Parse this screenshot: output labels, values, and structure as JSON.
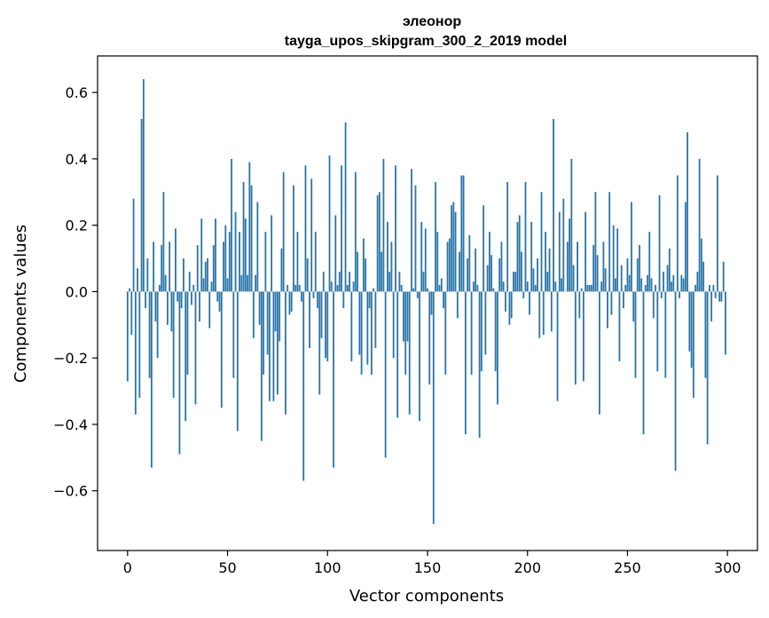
{
  "chart_data": {
    "type": "bar",
    "title": "элеонор",
    "subtitle": "tayga_upos_skipgram_300_2_2019 model",
    "xlabel": "Vector components",
    "ylabel": "Components values",
    "xlim": [
      -15,
      315
    ],
    "ylim": [
      -0.78,
      0.71
    ],
    "xticks": [
      0,
      50,
      100,
      150,
      200,
      250,
      300
    ],
    "yticks": [
      -0.6,
      -0.4,
      -0.2,
      0.0,
      0.2,
      0.4,
      0.6
    ],
    "xtick_labels": [
      "0",
      "50",
      "100",
      "150",
      "200",
      "250",
      "300"
    ],
    "ytick_labels": [
      "−0.6",
      "−0.4",
      "−0.2",
      "0.0",
      "0.2",
      "0.4",
      "0.6"
    ],
    "grid": false,
    "color": "#1f77b4",
    "x_start": 0,
    "values": [
      -0.27,
      0.01,
      -0.13,
      0.28,
      -0.37,
      0.07,
      -0.32,
      0.52,
      0.64,
      -0.05,
      0.1,
      -0.26,
      -0.53,
      0.15,
      -0.09,
      -0.2,
      0.02,
      0.14,
      0.3,
      0.05,
      -0.1,
      0.15,
      -0.12,
      -0.32,
      0.19,
      -0.03,
      -0.49,
      -0.05,
      0.1,
      -0.39,
      -0.25,
      0.06,
      -0.04,
      0.02,
      -0.34,
      0.14,
      -0.09,
      0.22,
      0.04,
      0.09,
      0.1,
      -0.11,
      0.03,
      0.14,
      0.22,
      -0.03,
      -0.06,
      -0.35,
      0.15,
      0.2,
      0.04,
      0.18,
      0.4,
      -0.26,
      0.24,
      -0.42,
      0.18,
      0.05,
      0.33,
      0.22,
      0.05,
      0.39,
      0.32,
      -0.14,
      0.05,
      0.27,
      -0.1,
      -0.45,
      -0.25,
      0.18,
      -0.19,
      -0.33,
      0.23,
      -0.33,
      -0.12,
      -0.31,
      -0.15,
      0.13,
      0.36,
      -0.37,
      0.02,
      -0.07,
      -0.06,
      0.32,
      0.02,
      0.18,
      0.02,
      -0.03,
      -0.57,
      0.38,
      0.1,
      -0.17,
      0.34,
      -0.02,
      0.18,
      -0.05,
      -0.31,
      -0.14,
      0.06,
      -0.2,
      -0.21,
      0.41,
      0.03,
      -0.53,
      0.23,
      0.02,
      0.06,
      0.38,
      -0.05,
      0.51,
      0.02,
      0.06,
      -0.21,
      0.03,
      0.36,
      0.12,
      -0.19,
      -0.25,
      0.16,
      0.1,
      -0.22,
      -0.05,
      -0.25,
      0.01,
      -0.17,
      0.29,
      0.3,
      0.12,
      0.4,
      -0.5,
      0.21,
      0.06,
      0.15,
      -0.2,
      0.38,
      -0.38,
      0.06,
      0.02,
      -0.15,
      -0.25,
      -0.15,
      -0.37,
      0.37,
      0.01,
      0.32,
      -0.02,
      -0.39,
      0.21,
      0.06,
      0.19,
      0.01,
      -0.28,
      -0.07,
      -0.7,
      0.33,
      0.18,
      0.02,
      0.04,
      -0.05,
      -0.25,
      0.15,
      0.16,
      0.26,
      0.27,
      0.24,
      -0.08,
      0.12,
      0.35,
      0.35,
      -0.43,
      0.1,
      0.17,
      -0.25,
      0.03,
      0.13,
      0.02,
      -0.44,
      -0.24,
      0.26,
      -0.19,
      0.08,
      0.18,
      0.11,
      0.01,
      -0.24,
      -0.34,
      0.1,
      0.15,
      0.03,
      -0.06,
      0.33,
      -0.1,
      -0.08,
      0.06,
      0.06,
      0.21,
      0.23,
      0.12,
      -0.02,
      0.33,
      0.03,
      -0.07,
      0.21,
      0.07,
      0.02,
      0.1,
      -0.14,
      0.3,
      -0.13,
      0.18,
      0.06,
      0.13,
      -0.12,
      0.52,
      0.03,
      -0.33,
      0.24,
      0.04,
      0.28,
      0.0,
      0.15,
      0.22,
      0.4,
      0.08,
      -0.28,
      0.15,
      -0.08,
      0.01,
      -0.27,
      0.24,
      0.02,
      0.02,
      0.02,
      0.14,
      0.3,
      0.11,
      -0.37,
      0.03,
      0.15,
      0.07,
      -0.11,
      0.3,
      -0.07,
      0.2,
      0.04,
      0.19,
      -0.21,
      0.08,
      -0.05,
      0.02,
      0.1,
      0.05,
      0.27,
      -0.09,
      -0.26,
      0.1,
      0.14,
      0.04,
      -0.43,
      0.02,
      0.05,
      0.18,
      0.04,
      -0.08,
      0.02,
      -0.24,
      0.29,
      -0.02,
      0.06,
      -0.26,
      0.08,
      0.13,
      0.03,
      0.05,
      -0.54,
      0.35,
      -0.02,
      0.05,
      0.04,
      0.27,
      0.48,
      -0.18,
      -0.23,
      -0.32,
      0.02,
      0.06,
      0.4,
      0.16,
      0.09,
      -0.26,
      -0.46,
      0.02,
      -0.09,
      0.02,
      -0.02,
      0.35,
      -0.03,
      -0.03,
      0.09,
      -0.19
    ]
  }
}
